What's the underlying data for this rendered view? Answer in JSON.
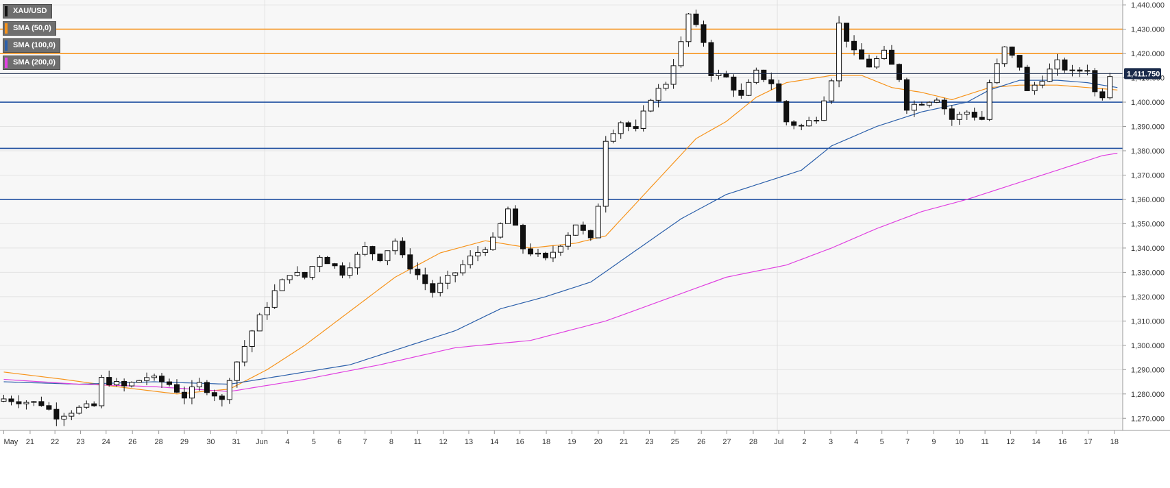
{
  "chart_data": {
    "type": "candlestick",
    "symbol": "XAU/USD",
    "legend": [
      {
        "label": "XAU/USD",
        "color": "#111111"
      },
      {
        "label": "SMA (50,0)",
        "color": "#f7931a"
      },
      {
        "label": "SMA (100,0)",
        "color": "#2b5faa"
      },
      {
        "label": "SMA (200,0)",
        "color": "#e040e0"
      }
    ],
    "ylim": [
      1265,
      1442
    ],
    "y_ticks": [
      1270,
      1280,
      1290,
      1300,
      1310,
      1320,
      1330,
      1340,
      1350,
      1360,
      1370,
      1380,
      1390,
      1400,
      1410,
      1420,
      1430,
      1440
    ],
    "y_tick_labels": [
      "1,270.000",
      "1,280.000",
      "1,290.000",
      "1,300.000",
      "1,310.000",
      "1,320.000",
      "1,330.000",
      "1,340.000",
      "1,350.000",
      "1,360.000",
      "1,370.000",
      "1,380.000",
      "1,390.000",
      "1,400.000",
      "1,410.000",
      "1,420.000",
      "1,430.000",
      "1,440.000"
    ],
    "current_price": 1411.75,
    "current_price_label": "1,411.750",
    "x_tick_labels": [
      "May",
      "21",
      "22",
      "23",
      "24",
      "26",
      "28",
      "29",
      "30",
      "31",
      "Jun",
      "4",
      "5",
      "6",
      "7",
      "8",
      "11",
      "12",
      "13",
      "14",
      "16",
      "18",
      "19",
      "20",
      "21",
      "23",
      "25",
      "26",
      "27",
      "28",
      "Jul",
      "2",
      "3",
      "4",
      "5",
      "7",
      "9",
      "10",
      "11",
      "12",
      "14",
      "16",
      "17",
      "18"
    ],
    "x_tick_positions": [
      0.0,
      3.5,
      6.8,
      10.2,
      13.6,
      17.1,
      20.6,
      24.0,
      27.5,
      30.9,
      34.3,
      37.7,
      41.2,
      44.6,
      48.0,
      51.5,
      55.0,
      58.4,
      61.8,
      65.2,
      68.6,
      72.1,
      75.5,
      79.0,
      82.4,
      85.8,
      89.2,
      92.7,
      96.1,
      99.6,
      103.0,
      106.4,
      109.9,
      113.3,
      116.7,
      120.1,
      123.6,
      127.0,
      130.4,
      133.8,
      137.2,
      140.7,
      144.1,
      147.6
    ],
    "x_range": [
      -0.5,
      148.7
    ],
    "separator_positions": [
      34.7,
      102.8
    ],
    "horizontal_levels": [
      {
        "value": 1430,
        "color": "#f7931a"
      },
      {
        "value": 1420,
        "color": "#f7931a"
      },
      {
        "value": 1400,
        "color": "#1f4fa0"
      },
      {
        "value": 1381,
        "color": "#1f4fa0"
      },
      {
        "value": 1360,
        "color": "#1f4fa0"
      }
    ],
    "candle_anchors": [
      [
        0,
        1278
      ],
      [
        5,
        1276
      ],
      [
        7,
        1271
      ],
      [
        10,
        1274
      ],
      [
        12,
        1275
      ],
      [
        13,
        1286
      ],
      [
        16,
        1283
      ],
      [
        19,
        1287
      ],
      [
        22,
        1284
      ],
      [
        24,
        1279
      ],
      [
        26,
        1284
      ],
      [
        28,
        1280
      ],
      [
        29,
        1277
      ],
      [
        30,
        1287
      ],
      [
        33,
        1306
      ],
      [
        36,
        1322
      ],
      [
        38,
        1330
      ],
      [
        40,
        1328
      ],
      [
        42,
        1337
      ],
      [
        45,
        1330
      ],
      [
        48,
        1340
      ],
      [
        50,
        1336
      ],
      [
        52,
        1343
      ],
      [
        53,
        1336
      ],
      [
        55,
        1329
      ],
      [
        57,
        1322
      ],
      [
        60,
        1330
      ],
      [
        62,
        1336
      ],
      [
        65,
        1343
      ],
      [
        67,
        1356
      ],
      [
        69,
        1340
      ],
      [
        72,
        1335
      ],
      [
        74,
        1342
      ],
      [
        76,
        1350
      ],
      [
        78,
        1343
      ],
      [
        79,
        1358
      ],
      [
        80,
        1385
      ],
      [
        82,
        1392
      ],
      [
        84,
        1388
      ],
      [
        86,
        1402
      ],
      [
        88,
        1408
      ],
      [
        90,
        1424
      ],
      [
        91,
        1436
      ],
      [
        93,
        1425
      ],
      [
        94,
        1412
      ],
      [
        96,
        1410
      ],
      [
        98,
        1402
      ],
      [
        100,
        1412
      ],
      [
        102,
        1408
      ],
      [
        103,
        1400
      ],
      [
        104,
        1392
      ],
      [
        106,
        1390
      ],
      [
        108,
        1394
      ],
      [
        110,
        1410
      ],
      [
        111,
        1432
      ],
      [
        113,
        1420
      ],
      [
        115,
        1415
      ],
      [
        117,
        1420
      ],
      [
        119,
        1410
      ],
      [
        120,
        1398
      ],
      [
        122,
        1400
      ],
      [
        124,
        1402
      ],
      [
        126,
        1393
      ],
      [
        128,
        1396
      ],
      [
        130,
        1393
      ],
      [
        131,
        1408
      ],
      [
        133,
        1422
      ],
      [
        135,
        1415
      ],
      [
        136,
        1404
      ],
      [
        138,
        1410
      ],
      [
        140,
        1416
      ],
      [
        142,
        1412
      ],
      [
        144,
        1414
      ],
      [
        145,
        1404
      ],
      [
        146,
        1403
      ],
      [
        147,
        1411.75
      ]
    ],
    "sma50_anchors": [
      [
        0,
        1289
      ],
      [
        8,
        1286
      ],
      [
        15,
        1283
      ],
      [
        23,
        1280
      ],
      [
        30,
        1282
      ],
      [
        35,
        1290
      ],
      [
        40,
        1300
      ],
      [
        46,
        1314
      ],
      [
        52,
        1328
      ],
      [
        58,
        1338
      ],
      [
        64,
        1343
      ],
      [
        70,
        1340
      ],
      [
        76,
        1342
      ],
      [
        80,
        1345
      ],
      [
        86,
        1365
      ],
      [
        92,
        1385
      ],
      [
        96,
        1392
      ],
      [
        100,
        1402
      ],
      [
        104,
        1408
      ],
      [
        110,
        1411
      ],
      [
        114,
        1411
      ],
      [
        118,
        1406
      ],
      [
        122,
        1404
      ],
      [
        126,
        1401
      ],
      [
        128,
        1403
      ],
      [
        131,
        1406
      ],
      [
        135,
        1407
      ],
      [
        140,
        1407
      ],
      [
        144,
        1406
      ],
      [
        148,
        1405
      ]
    ],
    "sma100_anchors": [
      [
        0,
        1285
      ],
      [
        10,
        1284
      ],
      [
        20,
        1285
      ],
      [
        30,
        1284
      ],
      [
        38,
        1288
      ],
      [
        46,
        1292
      ],
      [
        52,
        1298
      ],
      [
        60,
        1306
      ],
      [
        66,
        1315
      ],
      [
        72,
        1320
      ],
      [
        78,
        1326
      ],
      [
        84,
        1339
      ],
      [
        90,
        1352
      ],
      [
        96,
        1362
      ],
      [
        102,
        1368
      ],
      [
        106,
        1372
      ],
      [
        110,
        1382
      ],
      [
        116,
        1390
      ],
      [
        122,
        1396
      ],
      [
        128,
        1400
      ],
      [
        131,
        1405
      ],
      [
        135,
        1409
      ],
      [
        140,
        1409
      ],
      [
        144,
        1408
      ],
      [
        148,
        1406
      ]
    ],
    "sma200_anchors": [
      [
        0,
        1286
      ],
      [
        10,
        1284
      ],
      [
        20,
        1283
      ],
      [
        30,
        1281
      ],
      [
        40,
        1286
      ],
      [
        50,
        1292
      ],
      [
        60,
        1299
      ],
      [
        70,
        1302
      ],
      [
        80,
        1310
      ],
      [
        88,
        1319
      ],
      [
        96,
        1328
      ],
      [
        104,
        1333
      ],
      [
        110,
        1340
      ],
      [
        116,
        1348
      ],
      [
        122,
        1355
      ],
      [
        128,
        1360
      ],
      [
        134,
        1366
      ],
      [
        140,
        1372
      ],
      [
        146,
        1378
      ],
      [
        148,
        1379
      ]
    ]
  }
}
